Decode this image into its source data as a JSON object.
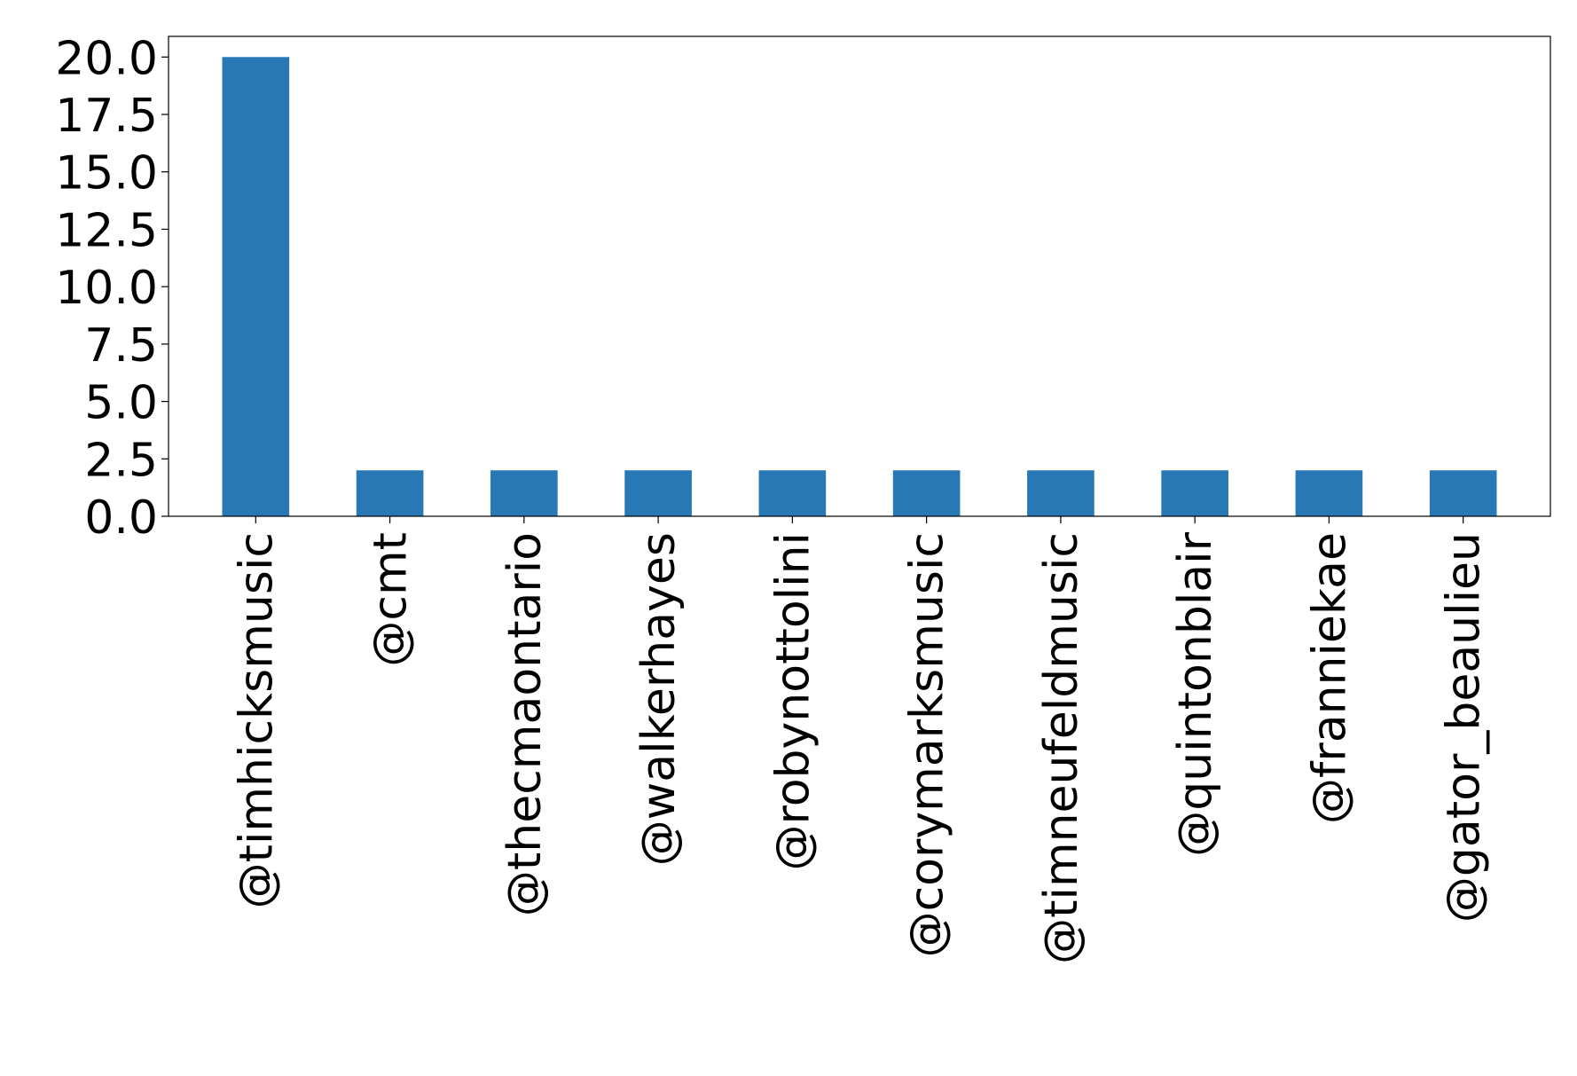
{
  "chart_data": {
    "type": "bar",
    "title": "",
    "xlabel": "",
    "ylabel": "",
    "categories": [
      "@timhicksmusic",
      "@cmt",
      "@thecmaontario",
      "@walkerhayes",
      "@robynottolini",
      "@corymarksmusic",
      "@timneufeldmusic",
      "@quintonblair",
      "@franniekae",
      "@gator_beaulieu"
    ],
    "values": [
      20,
      2,
      2,
      2,
      2,
      2,
      2,
      2,
      2,
      2
    ],
    "ylim": [
      0,
      20.9
    ],
    "yticks": [
      0.0,
      2.5,
      5.0,
      7.5,
      10.0,
      12.5,
      15.0,
      17.5,
      20.0
    ],
    "ytick_labels": [
      "0.0",
      "2.5",
      "5.0",
      "7.5",
      "10.0",
      "12.5",
      "15.0",
      "17.5",
      "20.0"
    ],
    "bar_color": "#2778b4",
    "grid": false,
    "legend": "none"
  }
}
